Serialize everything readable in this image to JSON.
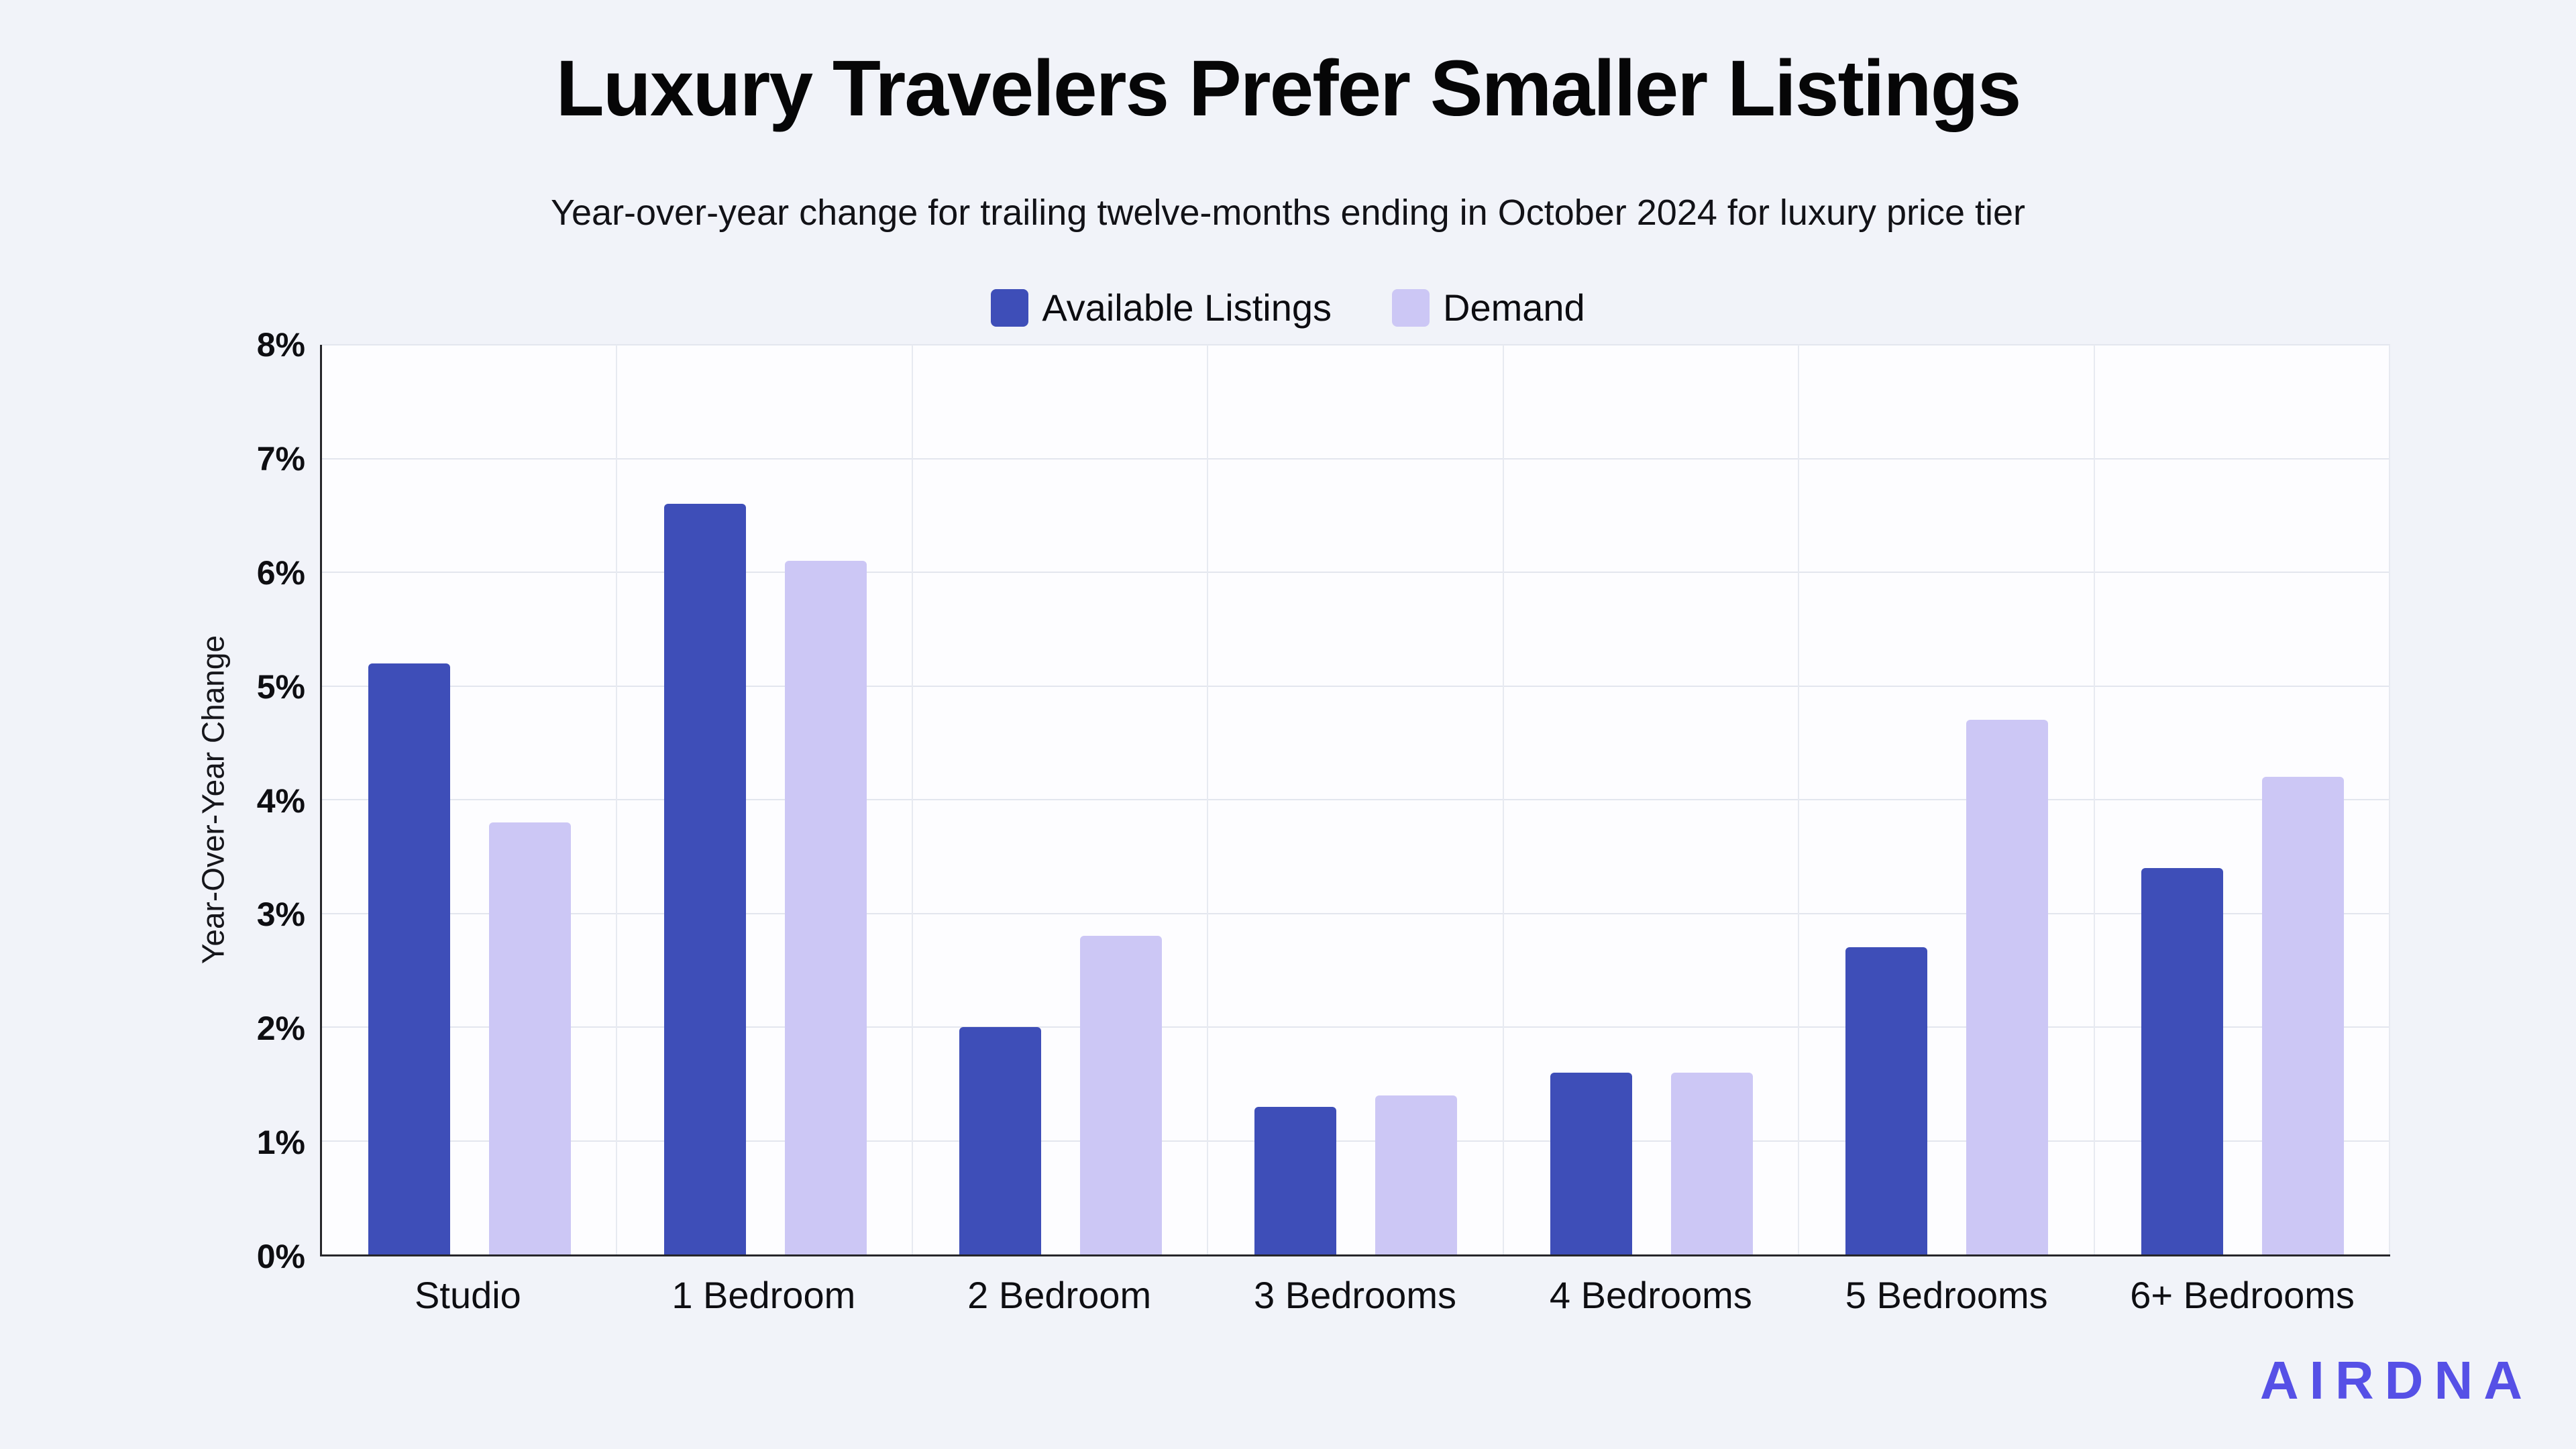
{
  "title": "Luxury Travelers Prefer Smaller Listings",
  "subtitle": "Year-over-year change for trailing twelve-months ending in October 2024 for luxury price tier",
  "y_axis_title": "Year-Over-Year Change",
  "brand": {
    "name": "AIRDNA",
    "color": "#5650e6"
  },
  "colors": {
    "available_listings": "#3e4eb8",
    "demand": "#ccc7f5",
    "page_background": "#f1f3f9",
    "plot_background": "#fdfdff",
    "gridline": "#e3e6ee",
    "axis_line": "#26262a"
  },
  "chart_data": {
    "type": "bar",
    "categories": [
      "Studio",
      "1 Bedroom",
      "2 Bedroom",
      "3 Bedrooms",
      "4 Bedrooms",
      "5 Bedrooms",
      "6+ Bedrooms"
    ],
    "series": [
      {
        "name": "Available Listings",
        "color": "#3e4eb8",
        "values": [
          5.2,
          6.6,
          2.0,
          1.3,
          1.6,
          2.7,
          3.4
        ]
      },
      {
        "name": "Demand",
        "color": "#ccc7f5",
        "values": [
          3.8,
          6.1,
          2.8,
          1.4,
          1.6,
          4.7,
          4.2
        ]
      }
    ],
    "title": "Luxury Travelers Prefer Smaller Listings",
    "subtitle": "Year-over-year change for trailing twelve-months ending in October 2024 for luxury price tier",
    "xlabel": "",
    "ylabel": "Year-Over-Year Change",
    "ylim": [
      0,
      8
    ],
    "ytick_step": 1,
    "ytick_suffix": "%",
    "grid": true,
    "legend_position": "top"
  }
}
